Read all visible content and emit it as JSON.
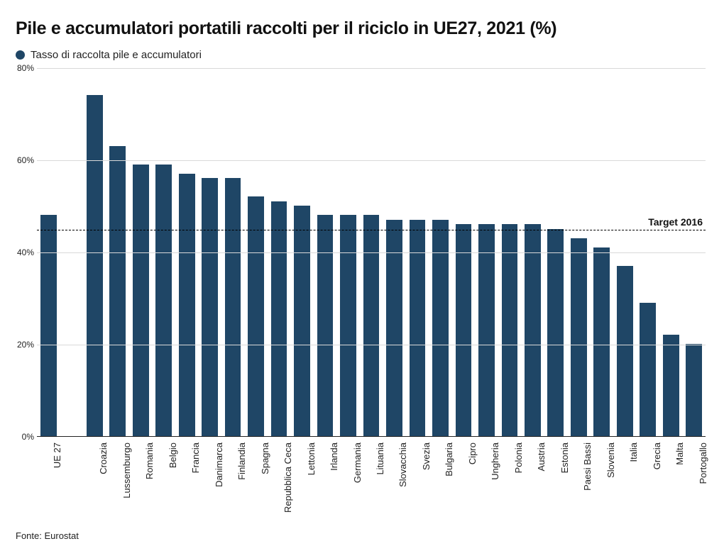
{
  "title": "Pile e accumulatori portatili raccolti per il riciclo in UE27, 2021 (%)",
  "legend": {
    "swatch_color": "#1f4666",
    "label": "Tasso di raccolta pile e accumulatori"
  },
  "source": "Fonte: Eurostat",
  "chart": {
    "type": "bar",
    "ylim": [
      0,
      80
    ],
    "ytick_step": 20,
    "y_tick_suffix": "%",
    "bar_color": "#1f4666",
    "grid_color": "#d9d9d9",
    "axis_color": "#222222",
    "background_color": "#ffffff",
    "bar_width_ratio": 0.7,
    "gap_after_first": true,
    "target": {
      "value": 45,
      "label": "Target 2016",
      "line_color": "#000000"
    },
    "categories": [
      "UE 27",
      "Croazia",
      "Lussemburgo",
      "Romania",
      "Belgio",
      "Francia",
      "Danimarca",
      "Finlandia",
      "Spagna",
      "Repubblica Ceca",
      "Lettonia",
      "Irlanda",
      "Germania",
      "Lituania",
      "Slovacchia",
      "Svezia",
      "Bulgaria",
      "Cipro",
      "Ungheria",
      "Polonia",
      "Austria",
      "Estonia",
      "Paesi Bassi",
      "Slovenia",
      "Italia",
      "Grecia",
      "Malta",
      "Portogallo"
    ],
    "values": [
      48,
      74,
      63,
      59,
      59,
      57,
      56,
      56,
      52,
      51,
      50,
      48,
      48,
      48,
      47,
      47,
      47,
      46,
      46,
      46,
      46,
      45,
      43,
      41,
      37,
      29,
      22,
      20
    ],
    "title_fontsize": 25,
    "label_fontsize": 13,
    "tick_fontsize": 12
  }
}
